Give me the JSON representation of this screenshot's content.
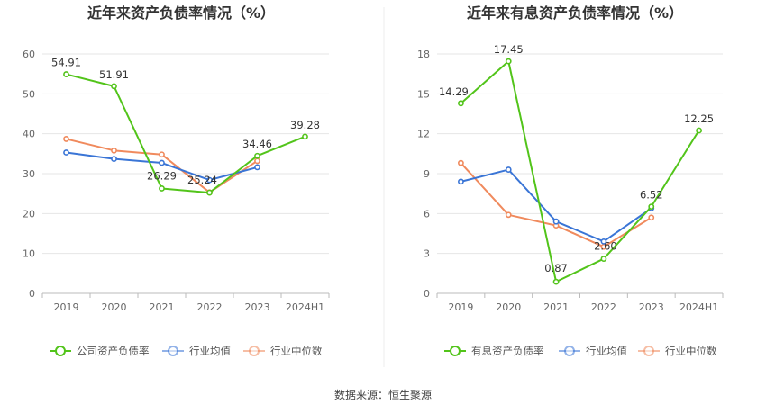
{
  "source": "数据来源：恒生聚源",
  "chart_data": [
    {
      "type": "line",
      "title": "近年来资产负债率情况（%）",
      "categories": [
        "2019",
        "2020",
        "2021",
        "2022",
        "2023",
        "2024H1"
      ],
      "ylim": [
        0,
        60
      ],
      "yticks": [
        0,
        10,
        20,
        30,
        40,
        50,
        60
      ],
      "grid": true,
      "legend_position": "bottom",
      "series": [
        {
          "name": "公司资产负债率",
          "color": "#52c41a",
          "values": [
            54.91,
            51.91,
            26.29,
            25.24,
            34.46,
            39.28
          ],
          "labels": [
            "54.91",
            "51.91",
            "26.29",
            "25.24",
            "34.46",
            "39.28"
          ]
        },
        {
          "name": "行业均值",
          "color": "#3a75d6",
          "values": [
            35.3,
            33.7,
            32.7,
            28.4,
            31.6,
            null
          ]
        },
        {
          "name": "行业中位数",
          "color": "#f08a5d",
          "values": [
            38.7,
            35.8,
            34.8,
            25.3,
            33.2,
            null
          ]
        }
      ]
    },
    {
      "type": "line",
      "title": "近年来有息资产负债率情况（%）",
      "categories": [
        "2019",
        "2020",
        "2021",
        "2022",
        "2023",
        "2024H1"
      ],
      "ylim": [
        0,
        18
      ],
      "yticks": [
        0,
        3,
        6,
        9,
        12,
        15,
        18
      ],
      "grid": true,
      "legend_position": "bottom",
      "series": [
        {
          "name": "有息资产负债率",
          "color": "#52c41a",
          "values": [
            14.29,
            17.45,
            0.87,
            2.6,
            6.52,
            12.25
          ],
          "labels": [
            "14.29",
            "17.45",
            "0.87",
            "2.60",
            "6.52",
            "12.25"
          ]
        },
        {
          "name": "行业均值",
          "color": "#3a75d6",
          "values": [
            8.4,
            9.3,
            5.4,
            3.9,
            6.4,
            null
          ]
        },
        {
          "name": "行业中位数",
          "color": "#f08a5d",
          "values": [
            9.8,
            5.9,
            5.1,
            3.5,
            5.7,
            null
          ]
        }
      ]
    }
  ]
}
